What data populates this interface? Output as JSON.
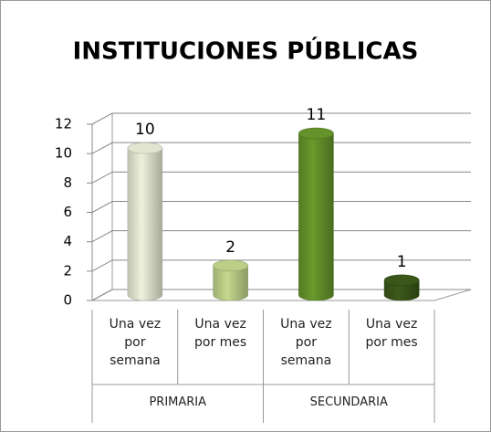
{
  "chart_data": {
    "type": "bar3d",
    "title": "INSTITUCIONES PÚBLICAS",
    "groups": [
      {
        "name": "PRIMARIA",
        "categories": [
          "Una vez por semana",
          "Una vez por mes"
        ]
      },
      {
        "name": "SECUNDARIA",
        "categories": [
          "Una vez por semana",
          "Una vez por mes"
        ]
      }
    ],
    "values": [
      10,
      2,
      11,
      1
    ],
    "colors": [
      "#eef2dc",
      "#c5da8e",
      "#6a9a2c",
      "#3d5a1a"
    ],
    "ylim": [
      0,
      12
    ],
    "yticks": [
      0,
      2,
      4,
      6,
      8,
      10,
      12
    ],
    "grid": true
  }
}
